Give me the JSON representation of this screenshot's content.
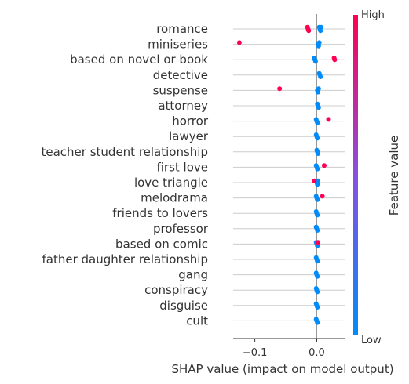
{
  "chart_data": {
    "type": "scatter",
    "subtype": "shap-beeswarm",
    "title": "",
    "xlabel": "SHAP value (impact on model output)",
    "ylabel": "",
    "xlim": [
      -0.135,
      0.045
    ],
    "xticks": [
      {
        "value": -0.1,
        "label": "−0.1"
      },
      {
        "value": 0.0,
        "label": "0.0"
      }
    ],
    "features": [
      "romance",
      "miniseries",
      "based on novel or book",
      "detective",
      "suspense",
      "attorney",
      "horror",
      "lawyer",
      "teacher student relationship",
      "first love",
      "love triangle",
      "melodrama",
      "friends to lovers",
      "professor",
      "based on comic",
      "father daughter relationship",
      "gang",
      "conspiracy",
      "disguise",
      "cult"
    ],
    "series": [
      {
        "feature": "romance",
        "points": [
          {
            "x": -0.015,
            "v": 1
          },
          {
            "x": -0.014,
            "v": 1
          },
          {
            "x": -0.013,
            "v": 1
          },
          {
            "x": 0.004,
            "v": 0
          },
          {
            "x": 0.005,
            "v": 0
          },
          {
            "x": 0.006,
            "v": 0
          },
          {
            "x": 0.007,
            "v": 0
          }
        ]
      },
      {
        "feature": "miniseries",
        "points": [
          {
            "x": -0.125,
            "v": 1
          },
          {
            "x": 0.002,
            "v": 0
          },
          {
            "x": 0.003,
            "v": 0
          },
          {
            "x": 0.004,
            "v": 0
          }
        ]
      },
      {
        "feature": "based on novel or book",
        "points": [
          {
            "x": -0.004,
            "v": 0
          },
          {
            "x": -0.003,
            "v": 0
          },
          {
            "x": -0.002,
            "v": 0
          },
          {
            "x": 0.028,
            "v": 1
          },
          {
            "x": 0.029,
            "v": 1
          }
        ]
      },
      {
        "feature": "detective",
        "points": [
          {
            "x": 0.004,
            "v": 0
          },
          {
            "x": 0.005,
            "v": 0
          },
          {
            "x": 0.006,
            "v": 0
          }
        ]
      },
      {
        "feature": "suspense",
        "points": [
          {
            "x": -0.06,
            "v": 1
          },
          {
            "x": 0.001,
            "v": 0
          },
          {
            "x": 0.002,
            "v": 0
          },
          {
            "x": 0.003,
            "v": 0
          }
        ]
      },
      {
        "feature": "attorney",
        "points": [
          {
            "x": 0.001,
            "v": 0
          },
          {
            "x": 0.002,
            "v": 0
          },
          {
            "x": 0.003,
            "v": 0
          }
        ]
      },
      {
        "feature": "horror",
        "points": [
          {
            "x": -0.001,
            "v": 0
          },
          {
            "x": 0.0,
            "v": 0
          },
          {
            "x": 0.001,
            "v": 0
          },
          {
            "x": 0.019,
            "v": 1
          }
        ]
      },
      {
        "feature": "lawyer",
        "points": [
          {
            "x": -0.001,
            "v": 0
          },
          {
            "x": 0.0,
            "v": 0
          },
          {
            "x": 0.001,
            "v": 0
          }
        ]
      },
      {
        "feature": "teacher student relationship",
        "points": [
          {
            "x": 0.0,
            "v": 0
          },
          {
            "x": 0.001,
            "v": 0
          },
          {
            "x": 0.002,
            "v": 0
          }
        ]
      },
      {
        "feature": "first love",
        "points": [
          {
            "x": -0.001,
            "v": 0
          },
          {
            "x": 0.0,
            "v": 0
          },
          {
            "x": 0.001,
            "v": 0
          },
          {
            "x": 0.012,
            "v": 1
          }
        ]
      },
      {
        "feature": "love triangle",
        "points": [
          {
            "x": -0.004,
            "v": 1
          },
          {
            "x": 0.0,
            "v": 0
          },
          {
            "x": 0.001,
            "v": 0
          },
          {
            "x": 0.002,
            "v": 0
          }
        ]
      },
      {
        "feature": "melodrama",
        "points": [
          {
            "x": -0.001,
            "v": 0
          },
          {
            "x": 0.0,
            "v": 0
          },
          {
            "x": 0.001,
            "v": 0
          },
          {
            "x": 0.009,
            "v": 1
          }
        ]
      },
      {
        "feature": "friends to lovers",
        "points": [
          {
            "x": -0.001,
            "v": 0
          },
          {
            "x": 0.0,
            "v": 0
          },
          {
            "x": 0.001,
            "v": 0
          }
        ]
      },
      {
        "feature": "professor",
        "points": [
          {
            "x": -0.001,
            "v": 0
          },
          {
            "x": 0.0,
            "v": 0
          },
          {
            "x": 0.001,
            "v": 0
          }
        ]
      },
      {
        "feature": "based on comic",
        "points": [
          {
            "x": -0.001,
            "v": 0
          },
          {
            "x": 0.0,
            "v": 0
          },
          {
            "x": 0.001,
            "v": 0
          },
          {
            "x": 0.002,
            "v": 1
          }
        ]
      },
      {
        "feature": "father daughter relationship",
        "points": [
          {
            "x": -0.001,
            "v": 0
          },
          {
            "x": 0.0,
            "v": 0
          },
          {
            "x": 0.001,
            "v": 0
          }
        ]
      },
      {
        "feature": "gang",
        "points": [
          {
            "x": -0.001,
            "v": 0
          },
          {
            "x": 0.0,
            "v": 0
          },
          {
            "x": 0.001,
            "v": 0
          }
        ]
      },
      {
        "feature": "conspiracy",
        "points": [
          {
            "x": -0.001,
            "v": 0
          },
          {
            "x": 0.0,
            "v": 0
          },
          {
            "x": 0.001,
            "v": 0
          }
        ]
      },
      {
        "feature": "disguise",
        "points": [
          {
            "x": -0.001,
            "v": 0
          },
          {
            "x": 0.0,
            "v": 0
          },
          {
            "x": 0.001,
            "v": 0
          }
        ]
      },
      {
        "feature": "cult",
        "points": [
          {
            "x": -0.001,
            "v": 0
          },
          {
            "x": 0.0,
            "v": 0
          },
          {
            "x": 0.001,
            "v": 0
          }
        ]
      }
    ],
    "colorbar": {
      "label": "Feature value",
      "high_label": "High",
      "low_label": "Low",
      "high_color": "#ff0052",
      "low_color": "#008bfb"
    },
    "grid": true,
    "zero_line": true
  }
}
